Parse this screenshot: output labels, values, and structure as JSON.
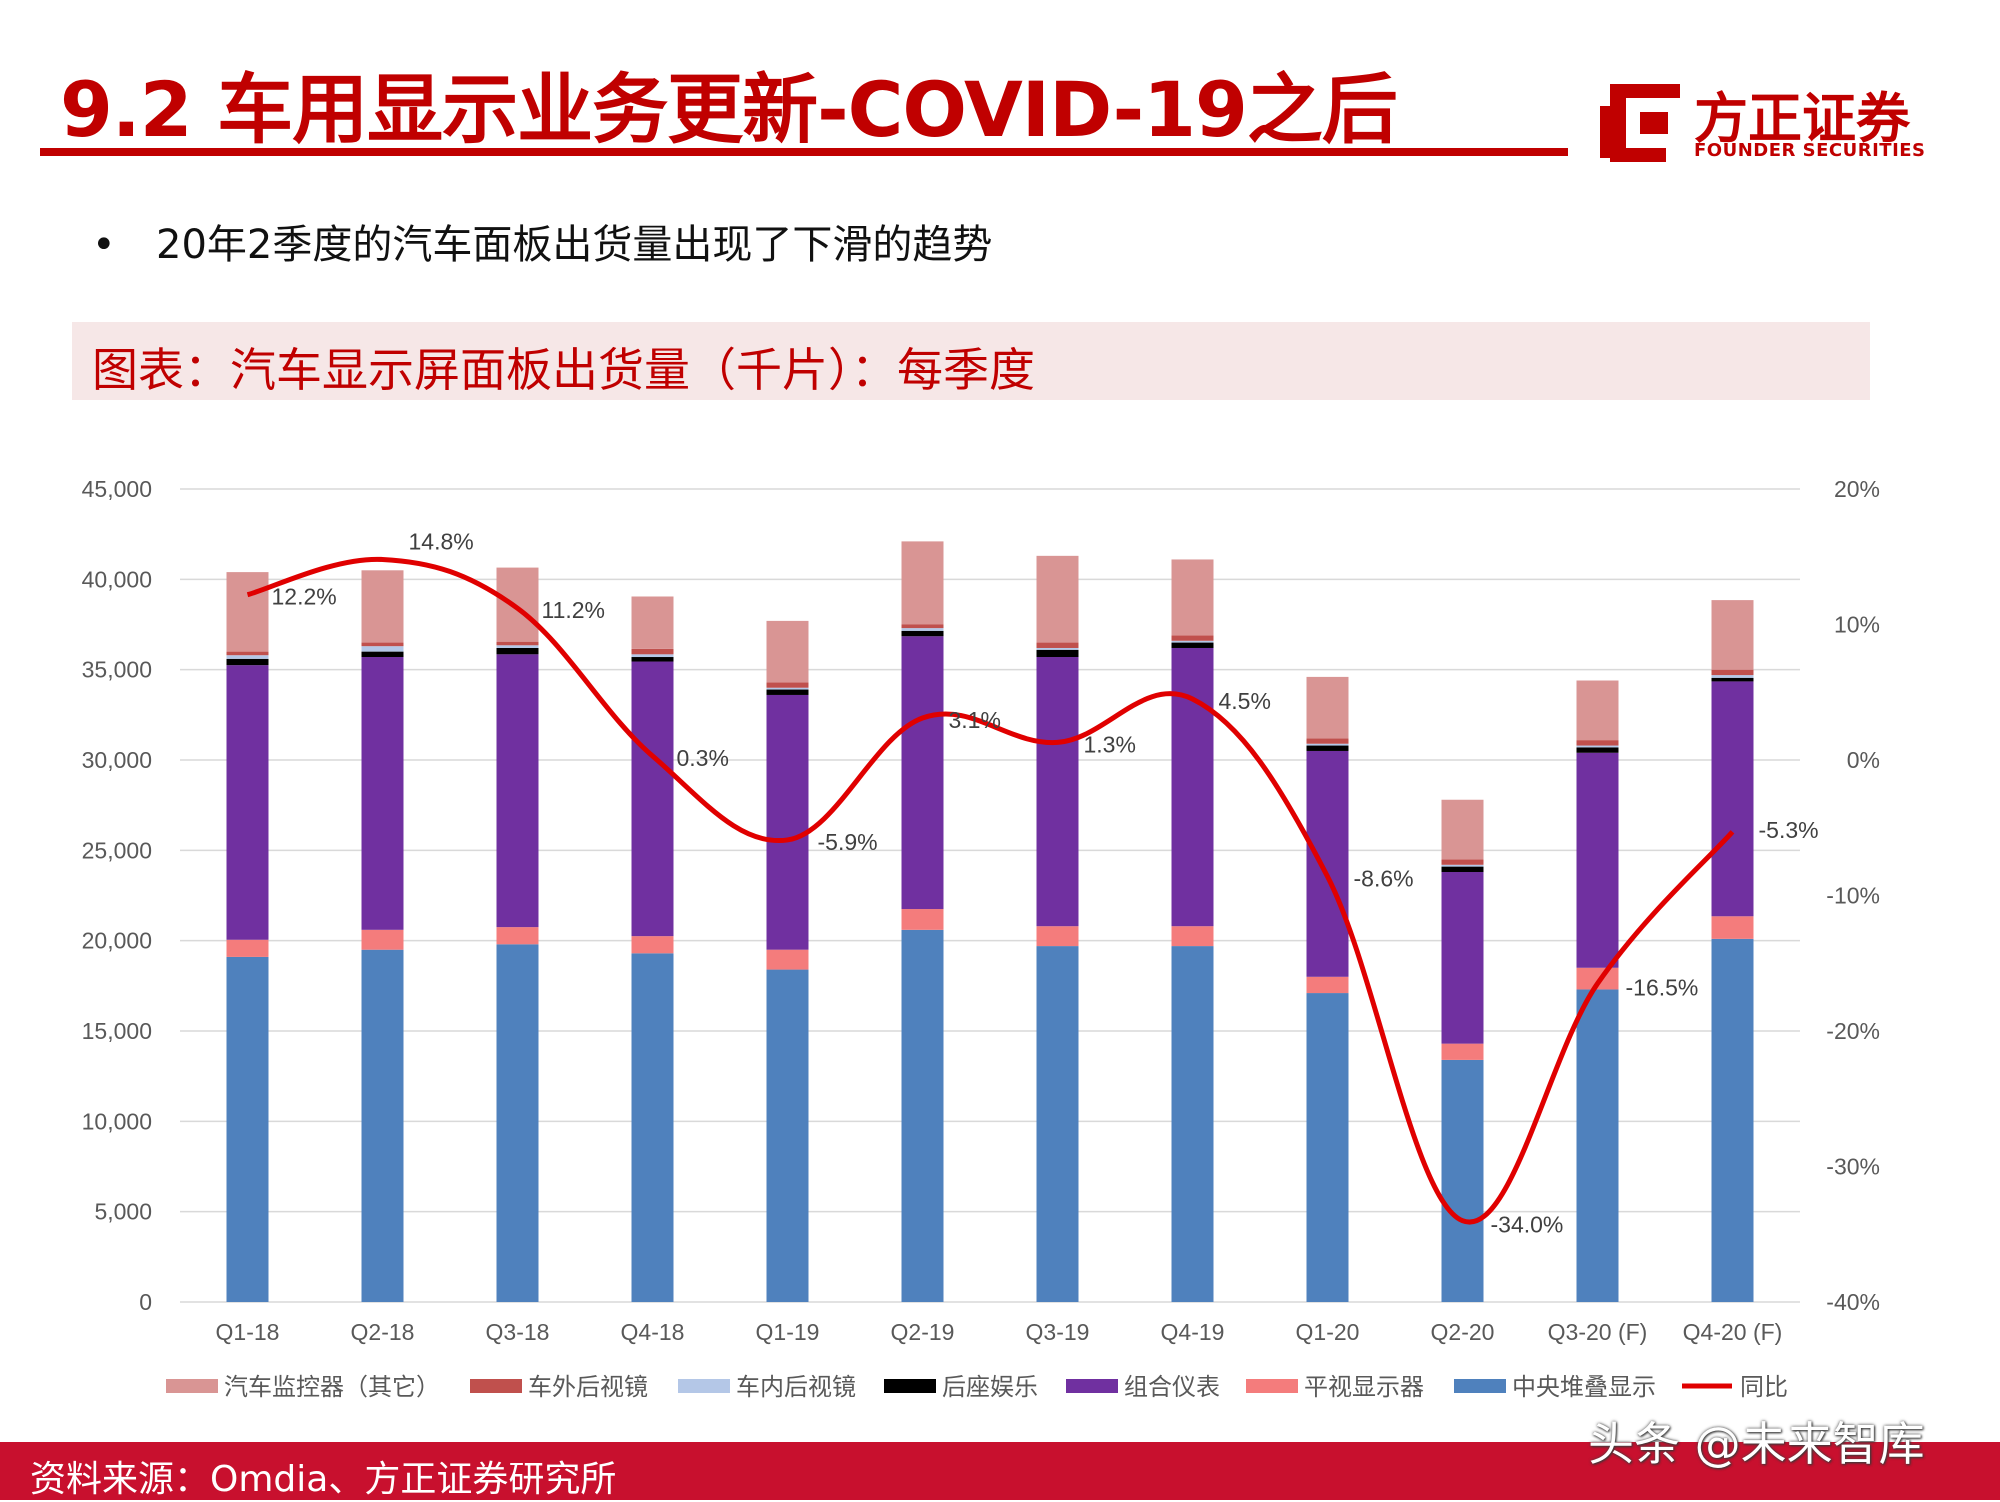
{
  "page": {
    "title": "9.2 车用显示业务更新-COVID-19之后",
    "logo_cn": "方正证券",
    "logo_en": "FOUNDER SECURITIES",
    "bullet": "20年2季度的汽车面板出货量出现了下滑的趋势",
    "caption": "图表：汽车显示屏面板出货量（千片）：每季度",
    "source": "资料来源：Omdia、方正证券研究所",
    "watermark": "头条 @未来智库",
    "accent_color": "#c00000"
  },
  "chart_data": {
    "type": "bar",
    "stacked": true,
    "categories": [
      "Q1-18",
      "Q2-18",
      "Q3-18",
      "Q4-18",
      "Q1-19",
      "Q2-19",
      "Q3-19",
      "Q4-19",
      "Q1-20",
      "Q2-20",
      "Q3-20 (F)",
      "Q4-20 (F)"
    ],
    "ylim": [
      0,
      45000
    ],
    "yticks": [
      "0",
      "5,000",
      "10,000",
      "15,000",
      "20,000",
      "25,000",
      "30,000",
      "35,000",
      "40,000",
      "45,000"
    ],
    "y2lim": [
      -40,
      20
    ],
    "y2ticks": [
      "-40%",
      "-30%",
      "-20%",
      "-10%",
      "0%",
      "10%",
      "20%"
    ],
    "grid": true,
    "legend_position": "bottom",
    "series": [
      {
        "name": "中央堆叠显示",
        "color": "#4f81bd",
        "values": [
          19100,
          19500,
          19800,
          19300,
          18400,
          20600,
          19700,
          19700,
          17100,
          13400,
          17300,
          20100
        ]
      },
      {
        "name": "平视显示器",
        "color": "#f47c7c",
        "values": [
          950,
          1100,
          950,
          950,
          1100,
          1150,
          1100,
          1100,
          900,
          900,
          1200,
          1250
        ]
      },
      {
        "name": "组合仪表",
        "color": "#7030a0",
        "values": [
          15200,
          15100,
          15100,
          15200,
          14100,
          15100,
          14900,
          15400,
          12500,
          9500,
          11900,
          13000
        ]
      },
      {
        "name": "后座娱乐",
        "color": "#000000",
        "values": [
          350,
          300,
          350,
          250,
          300,
          300,
          400,
          300,
          300,
          300,
          300,
          200
        ]
      },
      {
        "name": "车内后视镜",
        "color": "#b4c7e7",
        "values": [
          200,
          300,
          150,
          150,
          100,
          150,
          100,
          100,
          100,
          100,
          100,
          150
        ]
      },
      {
        "name": "车外后视镜",
        "color": "#c0504d",
        "values": [
          200,
          200,
          200,
          300,
          300,
          200,
          300,
          300,
          300,
          300,
          300,
          300
        ]
      },
      {
        "name": "汽车监控器（其它）",
        "color": "#d99594",
        "values": [
          4400,
          4000,
          4100,
          2900,
          3400,
          4600,
          4800,
          4200,
          3400,
          3300,
          3300,
          3850
        ]
      }
    ],
    "line": {
      "name": "同比",
      "color": "#e00000",
      "values": [
        12.2,
        14.8,
        11.2,
        0.3,
        -5.9,
        3.1,
        1.3,
        4.5,
        -8.6,
        -34.0,
        -16.5,
        -5.3
      ]
    },
    "line_labels": [
      "12.2%",
      "14.8%",
      "11.2%",
      "0.3%",
      "-5.9%",
      "3.1%",
      "1.3%",
      "4.5%",
      "-8.6%",
      "-34.0%",
      "-16.5%",
      "-5.3%"
    ],
    "legend_order": [
      "汽车监控器（其它）",
      "车外后视镜",
      "车内后视镜",
      "后座娱乐",
      "组合仪表",
      "平视显示器",
      "中央堆叠显示",
      "同比"
    ]
  }
}
